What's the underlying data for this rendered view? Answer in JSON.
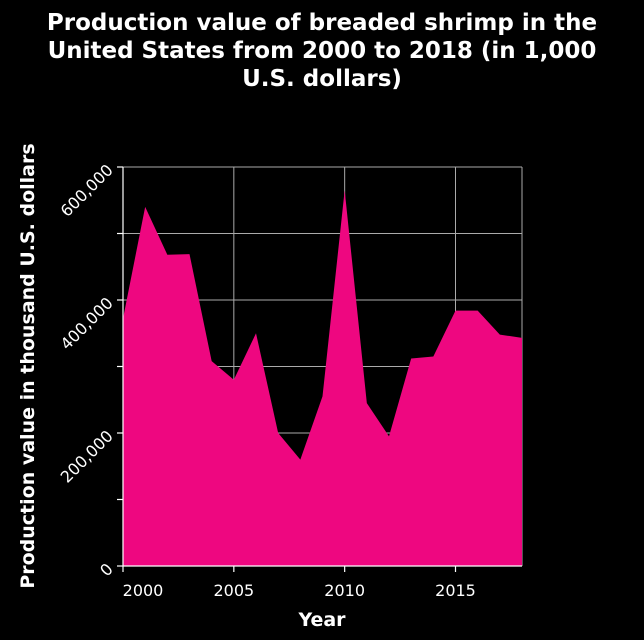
{
  "chart_data": {
    "type": "area",
    "title_lines": [
      "Production value of breaded shrimp in the",
      "United States from 2000 to 2018 (in 1,000",
      "U.S. dollars)"
    ],
    "xlabel": "Year",
    "ylabel": "Production value in thousand U.S. dollars",
    "x": [
      2000,
      2001,
      2002,
      2003,
      2004,
      2005,
      2006,
      2007,
      2008,
      2009,
      2010,
      2011,
      2012,
      2013,
      2014,
      2015,
      2016,
      2017,
      2018
    ],
    "values": [
      372000,
      540000,
      468000,
      469000,
      308000,
      280000,
      350000,
      200000,
      160000,
      255000,
      565000,
      245000,
      195000,
      312000,
      315000,
      384000,
      384000,
      348000,
      343000
    ],
    "xlim": [
      2000,
      2018
    ],
    "ylim": [
      0,
      600000
    ],
    "x_ticks": [
      2000,
      2005,
      2010,
      2015
    ],
    "x_tick_labels": [
      "2000",
      "2005",
      "2010",
      "2015"
    ],
    "y_ticks": [
      0,
      100000,
      200000,
      300000,
      400000,
      500000,
      600000
    ],
    "y_tick_labels": [
      "0",
      "",
      "200,000",
      "",
      "400,000",
      "",
      "600,000"
    ],
    "grid": true,
    "colors": {
      "background": "#000000",
      "area": "#ee0780",
      "grid": "#aaaaaa",
      "text": "#ffffff"
    }
  }
}
